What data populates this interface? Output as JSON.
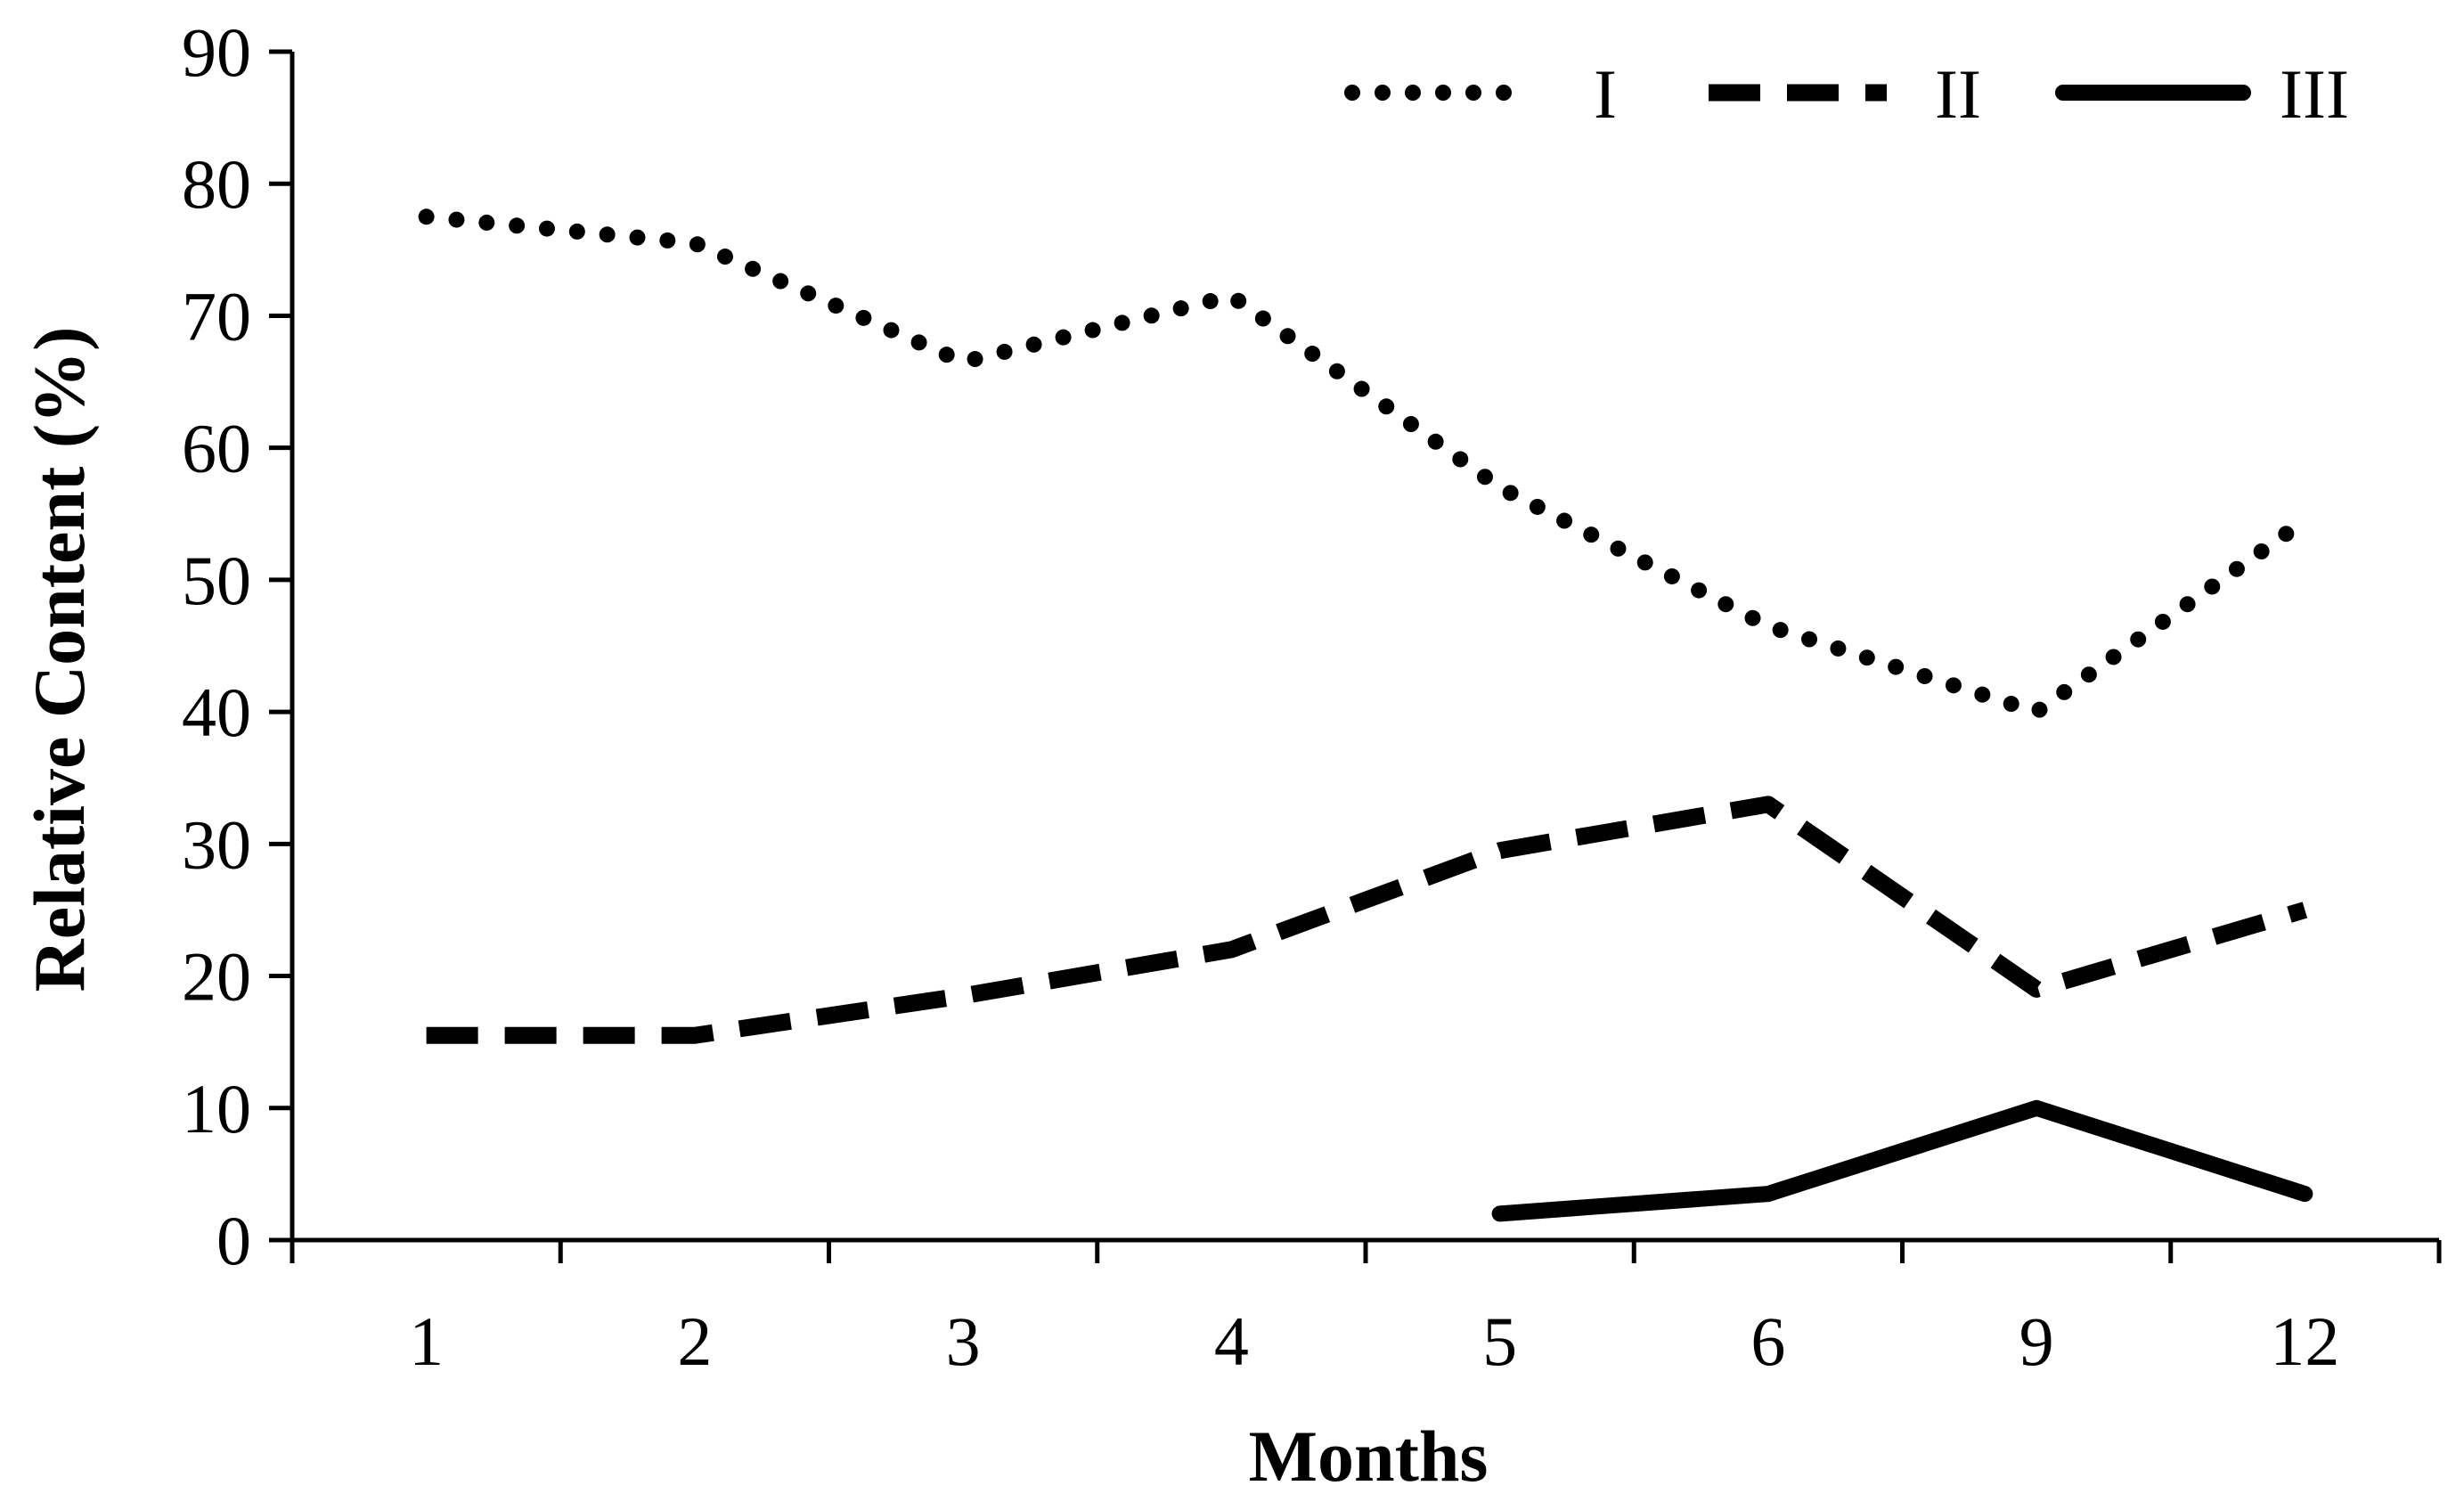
{
  "chart_data": {
    "type": "line",
    "title": "",
    "xlabel": "Months",
    "ylabel": "Relative Content (%)",
    "categories": [
      "1",
      "2",
      "3",
      "4",
      "5",
      "6",
      "9",
      "12"
    ],
    "ylim": [
      0,
      90
    ],
    "yticks": [
      0,
      10,
      20,
      30,
      40,
      50,
      60,
      70,
      80,
      90
    ],
    "grid": false,
    "legend_position": "top-right",
    "series": [
      {
        "name": "I",
        "style": "dotted",
        "color": "#000000",
        "values": [
          77.5,
          75.5,
          66.5,
          71.5,
          57,
          46.5,
          40,
          54.5
        ]
      },
      {
        "name": "II",
        "style": "dashed",
        "color": "#000000",
        "values": [
          15.5,
          15.5,
          18.5,
          22,
          29.5,
          33,
          19,
          25
        ]
      },
      {
        "name": "III",
        "style": "solid",
        "color": "#000000",
        "values": [
          null,
          null,
          null,
          null,
          2,
          3.5,
          10,
          3.5
        ]
      }
    ]
  }
}
